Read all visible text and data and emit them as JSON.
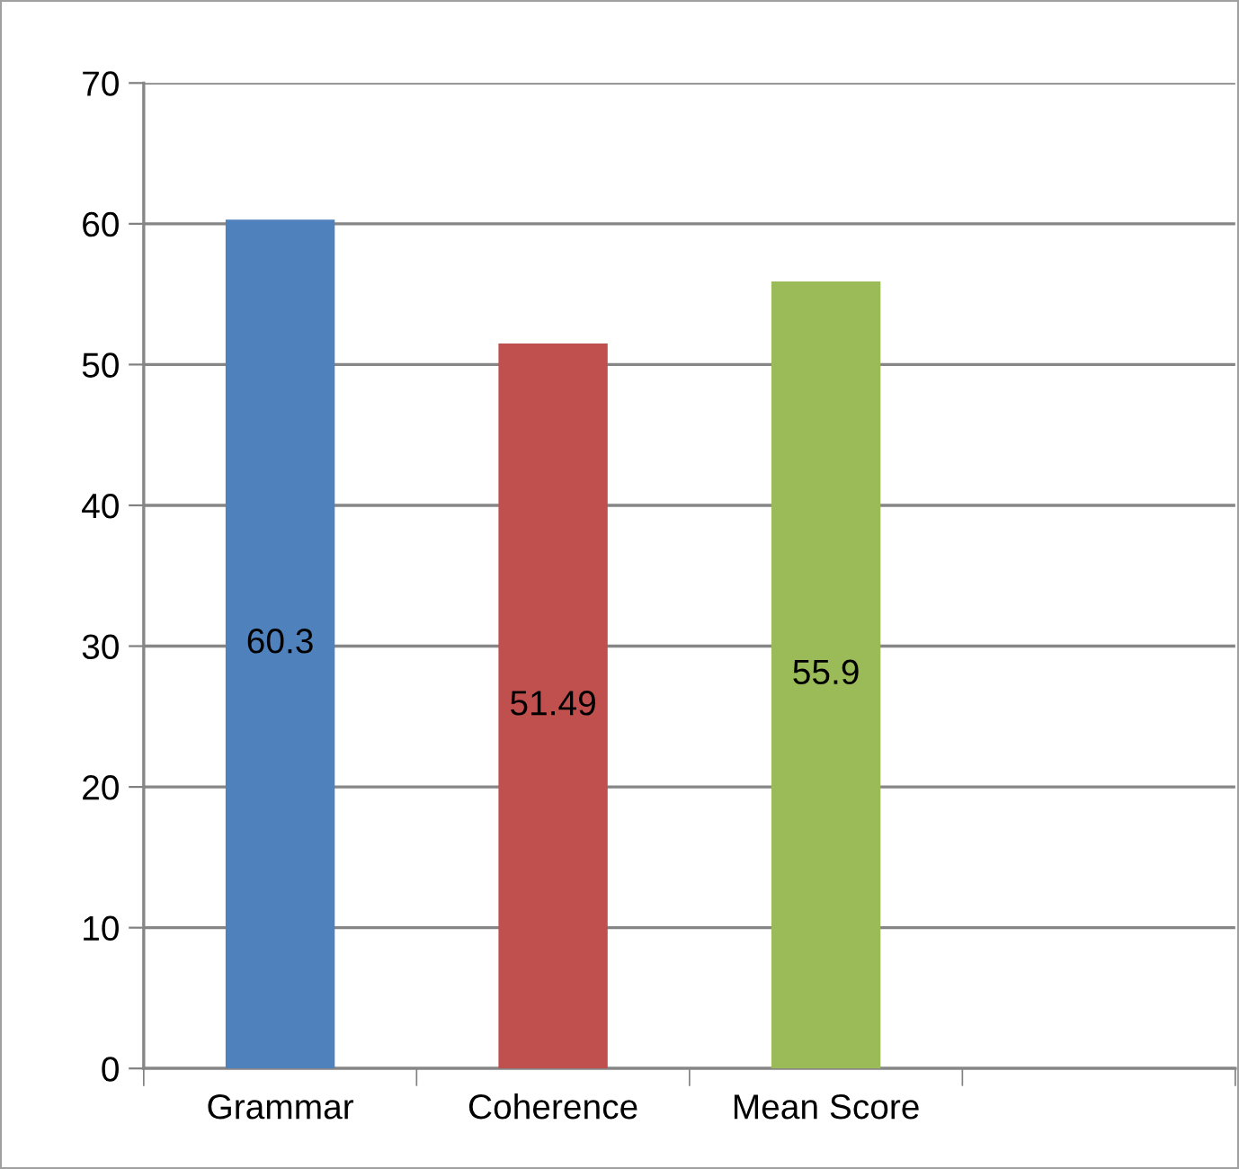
{
  "chart_data": {
    "type": "bar",
    "categories": [
      "Grammar",
      "Coherence",
      "Mean Score",
      null
    ],
    "values": [
      60.3,
      51.49,
      55.9,
      null
    ],
    "colors": [
      "#4f81bd",
      "#c0504d",
      "#9bbb59",
      null
    ],
    "ylim": [
      0,
      70
    ],
    "yticks": [
      0,
      10,
      20,
      30,
      40,
      50,
      60,
      70
    ],
    "grid": "y",
    "legend": false,
    "data_labels": true
  }
}
